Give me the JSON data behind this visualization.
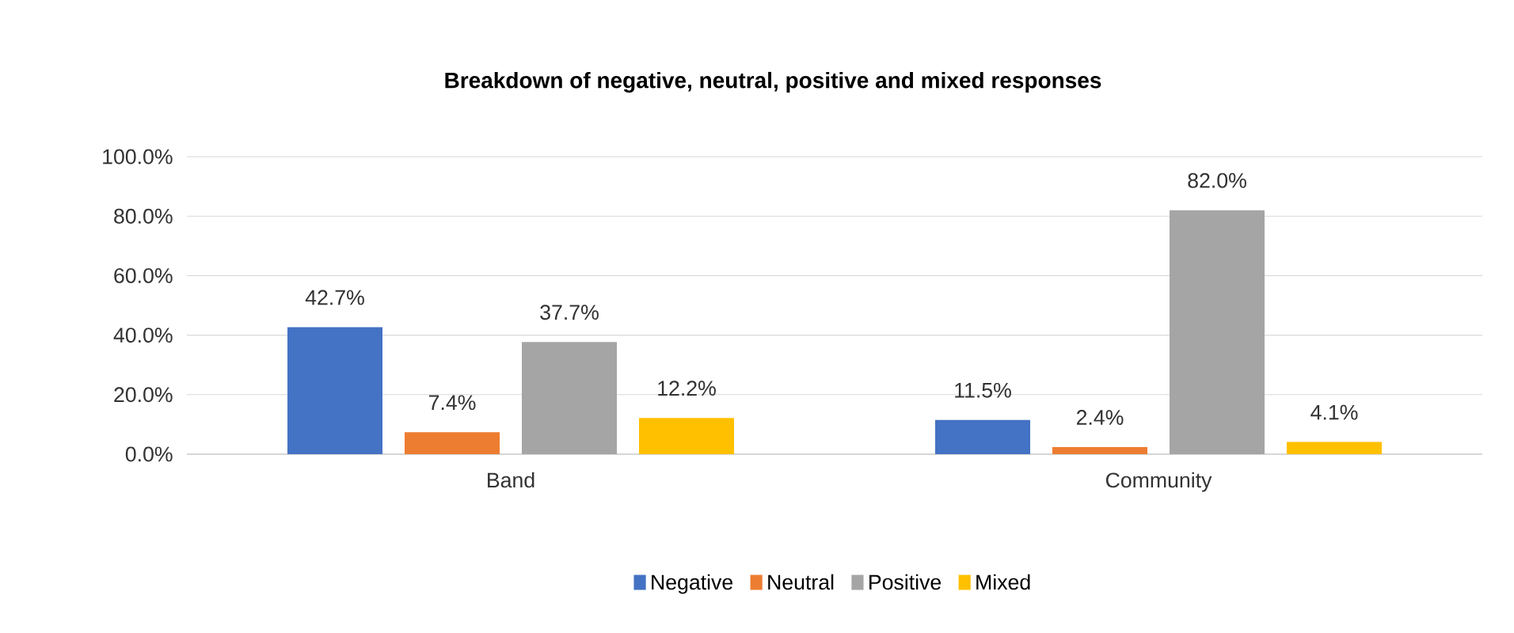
{
  "chart_data": {
    "type": "bar",
    "title": "**Breakdown of negative, neutral, positive and mixed responses**",
    "categories": [
      "Band",
      "Community"
    ],
    "series": [
      {
        "name": "Negative",
        "color": "#4472c4",
        "values": [
          42.7,
          11.5
        ],
        "value_labels": [
          "42.7%",
          "11.5%"
        ]
      },
      {
        "name": "Neutral",
        "color": "#ed7d31",
        "values": [
          7.4,
          2.4
        ],
        "value_labels": [
          "7.4%",
          "2.4%"
        ]
      },
      {
        "name": "Positive",
        "color": "#a5a5a5",
        "values": [
          37.7,
          82.0
        ],
        "value_labels": [
          "37.7%",
          "82.0%"
        ]
      },
      {
        "name": "Mixed",
        "color": "#ffc000",
        "values": [
          12.2,
          4.1
        ],
        "value_labels": [
          "12.2%",
          "4.1%"
        ]
      }
    ],
    "ylim": [
      0,
      100
    ],
    "yticks": [
      {
        "value": 0,
        "label": "0.0%"
      },
      {
        "value": 20,
        "label": "20.0%"
      },
      {
        "value": 40,
        "label": "40.0%"
      },
      {
        "value": 60,
        "label": "60.0%"
      },
      {
        "value": 80,
        "label": "80.0%"
      },
      {
        "value": 100,
        "label": "100.0%"
      }
    ],
    "grid": "y",
    "legend": "bottom"
  }
}
